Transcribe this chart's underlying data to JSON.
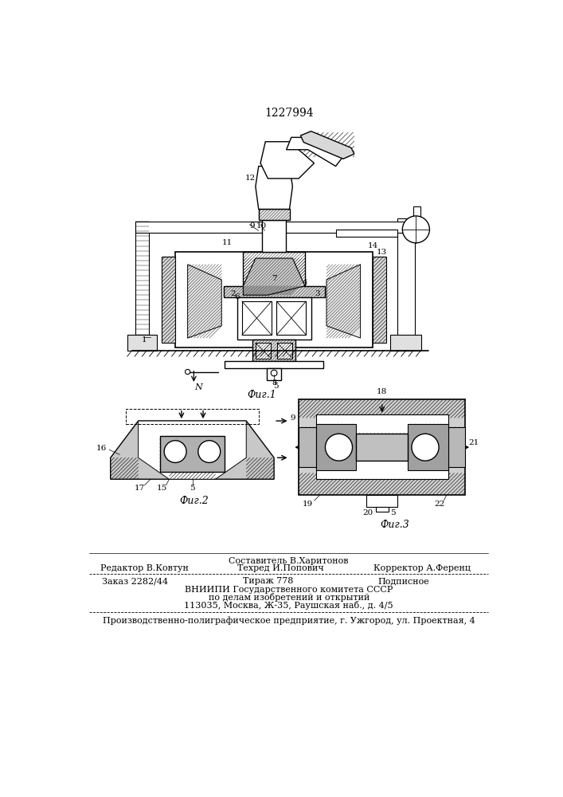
{
  "patent_number": "1227994",
  "fig1_caption": "Фиг.1",
  "fig2_caption": "Фиг.2",
  "fig3_caption": "Фиг.3",
  "footer_line1": "Составитель В.Харитонов",
  "footer_col1_r2": "Редактор В.Ковтун",
  "footer_col2_r2": "Техред И.Попович",
  "footer_col3_r2": "Корректор А.Ференц",
  "footer_col1_r3": "Заказ 2282/44",
  "footer_col2_r3": "Тираж 778",
  "footer_col3_r3": "Подписное",
  "footer_line4": "ВНИИПИ Государственного комитета СССР",
  "footer_line5": "по делам изобретений и открытий",
  "footer_line6": "113035, Москва, Ж-35, Раушская наб., д. 4/5",
  "footer_line7": "Производственно-полиграфическое предприятие, г. Ужгород, ул. Проектная, 4",
  "bg_color": "#ffffff",
  "lc": "#000000"
}
